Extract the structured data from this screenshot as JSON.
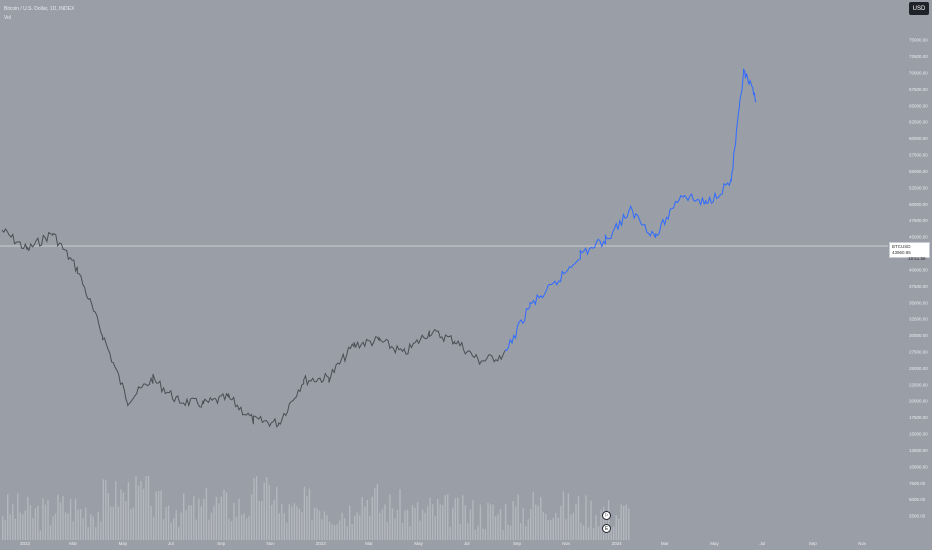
{
  "legend": {
    "title": "Bitcoin / U.S. Dollar, 1D, INDEX",
    "indicator": "Vol"
  },
  "currency_button": "USD",
  "price_tag": {
    "symbol": "BTCUSD",
    "price": "43960.85",
    "countdown": "19:51:56"
  },
  "markers": [
    {
      "icon": "dividend-flag-icon",
      "label": "⚐"
    },
    {
      "icon": "earnings-icon",
      "label": "E"
    }
  ],
  "colors": {
    "background": "#9a9ea7",
    "history_line": "#4c4e54",
    "projection_line": "#2f6bff",
    "volume_bars": "#b4b7bd",
    "crosshair_price_line": "#d8dbe0"
  },
  "chart_data": {
    "type": "line",
    "series": [
      {
        "values": [
          {
            "x": "2022-01",
            "y": 46000
          },
          {
            "x": "2022-02",
            "y": 43000
          },
          {
            "x": "2022-03",
            "y": 45500
          },
          {
            "x": "2022-04",
            "y": 40000
          },
          {
            "x": "2022-05",
            "y": 30000
          },
          {
            "x": "2022-06",
            "y": 20000
          },
          {
            "x": "2022-07",
            "y": 23300
          },
          {
            "x": "2022-08",
            "y": 20000
          },
          {
            "x": "2022-09",
            "y": 19500
          },
          {
            "x": "2022-10",
            "y": 20500
          },
          {
            "x": "2022-11",
            "y": 17000
          },
          {
            "x": "2022-12",
            "y": 16600
          },
          {
            "x": "2023-01",
            "y": 23100
          },
          {
            "x": "2023-02",
            "y": 23500
          },
          {
            "x": "2023-03",
            "y": 28500
          },
          {
            "x": "2023-04",
            "y": 29200
          },
          {
            "x": "2023-05",
            "y": 27200
          },
          {
            "x": "2023-06",
            "y": 30500
          },
          {
            "x": "2023-07",
            "y": 29200
          },
          {
            "x": "2023-08",
            "y": 26000
          },
          {
            "x": "2023-09",
            "y": 27000
          }
        ]
      },
      {
        "values": [
          {
            "x": "2023-10",
            "y": 34500
          },
          {
            "x": "2023-11",
            "y": 37700
          },
          {
            "x": "2023-12",
            "y": 42300
          },
          {
            "x": "2024-01",
            "y": 44500
          },
          {
            "x": "2024-02",
            "y": 49000
          },
          {
            "x": "2024-03",
            "y": 45000
          },
          {
            "x": "2024-04",
            "y": 51500
          },
          {
            "x": "2024-05",
            "y": 50000
          },
          {
            "x": "2024-06",
            "y": 53500
          },
          {
            "x": "2024-06-15",
            "y": 70000
          },
          {
            "x": "2024-07",
            "y": 66000
          }
        ]
      }
    ],
    "x_ticks": [
      "2022",
      "Feb",
      "Mar",
      "Apr",
      "May",
      "Jun",
      "Jul",
      "Aug",
      "Sep",
      "Oct",
      "Nov",
      "Dec",
      "2023",
      "Feb",
      "Mar",
      "Apr",
      "May",
      "Jun",
      "Jul",
      "Aug",
      "Sep",
      "Oct",
      "Nov",
      "Dec",
      "2024",
      "Feb",
      "Mar",
      "Apr",
      "May",
      "Jun",
      "Jul",
      "Aug",
      "Sep",
      "Oct",
      "Nov"
    ],
    "x_ticks_visible": [
      "2022",
      "Mar",
      "May",
      "Jul",
      "Sep",
      "Nov",
      "2023",
      "Mar",
      "May",
      "Jul",
      "Sep",
      "Nov",
      "2024",
      "Mar",
      "May",
      "Jul",
      "Sep",
      "Nov"
    ],
    "y_ticks": [
      75000,
      72500,
      70000,
      67500,
      65000,
      62500,
      60000,
      57500,
      55000,
      52500,
      50000,
      47500,
      45000,
      42500,
      40000,
      37500,
      35000,
      32500,
      30000,
      27500,
      25000,
      22500,
      20000,
      17500,
      15000,
      12500,
      10000,
      7500,
      5000,
      2500
    ],
    "current_price": 43960.85,
    "ylim": [
      0,
      78000
    ],
    "grid": false,
    "volume": {
      "values_per_month": [
        4,
        3,
        5,
        4,
        9,
        10,
        5,
        4,
        6,
        5,
        10,
        3,
        6,
        4,
        8,
        5,
        3,
        4,
        3,
        3,
        4,
        6,
        5,
        4,
        3
      ]
    }
  }
}
